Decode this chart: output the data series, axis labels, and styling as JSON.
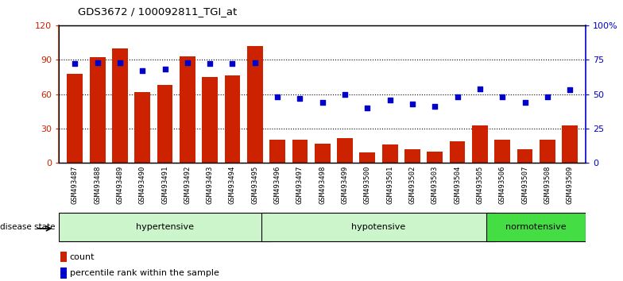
{
  "title": "GDS3672 / 100092811_TGI_at",
  "samples": [
    "GSM493487",
    "GSM493488",
    "GSM493489",
    "GSM493490",
    "GSM493491",
    "GSM493492",
    "GSM493493",
    "GSM493494",
    "GSM493495",
    "GSM493496",
    "GSM493497",
    "GSM493498",
    "GSM493499",
    "GSM493500",
    "GSM493501",
    "GSM493502",
    "GSM493503",
    "GSM493504",
    "GSM493505",
    "GSM493506",
    "GSM493507",
    "GSM493508",
    "GSM493509"
  ],
  "counts": [
    78,
    92,
    100,
    62,
    68,
    93,
    75,
    76,
    102,
    20,
    20,
    17,
    22,
    9,
    16,
    12,
    10,
    19,
    33,
    20,
    12,
    20,
    33
  ],
  "percentiles": [
    72,
    73,
    73,
    67,
    68,
    73,
    72,
    72,
    73,
    48,
    47,
    44,
    50,
    40,
    46,
    43,
    41,
    48,
    54,
    48,
    44,
    48,
    53
  ],
  "group_boundaries": [
    0,
    9,
    19,
    23
  ],
  "group_labels": [
    "hypertensive",
    "hypotensive",
    "normotensive"
  ],
  "group_colors": [
    "#ccf5cc",
    "#ccf5cc",
    "#44dd44"
  ],
  "bar_color": "#cc2200",
  "dot_color": "#0000cc",
  "ylim_left": [
    0,
    120
  ],
  "ylim_right": [
    0,
    100
  ],
  "yticks_left": [
    0,
    30,
    60,
    90,
    120
  ],
  "yticks_right": [
    0,
    25,
    50,
    75,
    100
  ],
  "ytick_labels_left": [
    "0",
    "30",
    "60",
    "90",
    "120"
  ],
  "ytick_labels_right": [
    "0",
    "25",
    "50",
    "75",
    "100%"
  ],
  "grid_values": [
    30,
    60,
    90
  ],
  "legend_count_label": "count",
  "legend_percentile_label": "percentile rank within the sample",
  "disease_state_label": "disease state"
}
